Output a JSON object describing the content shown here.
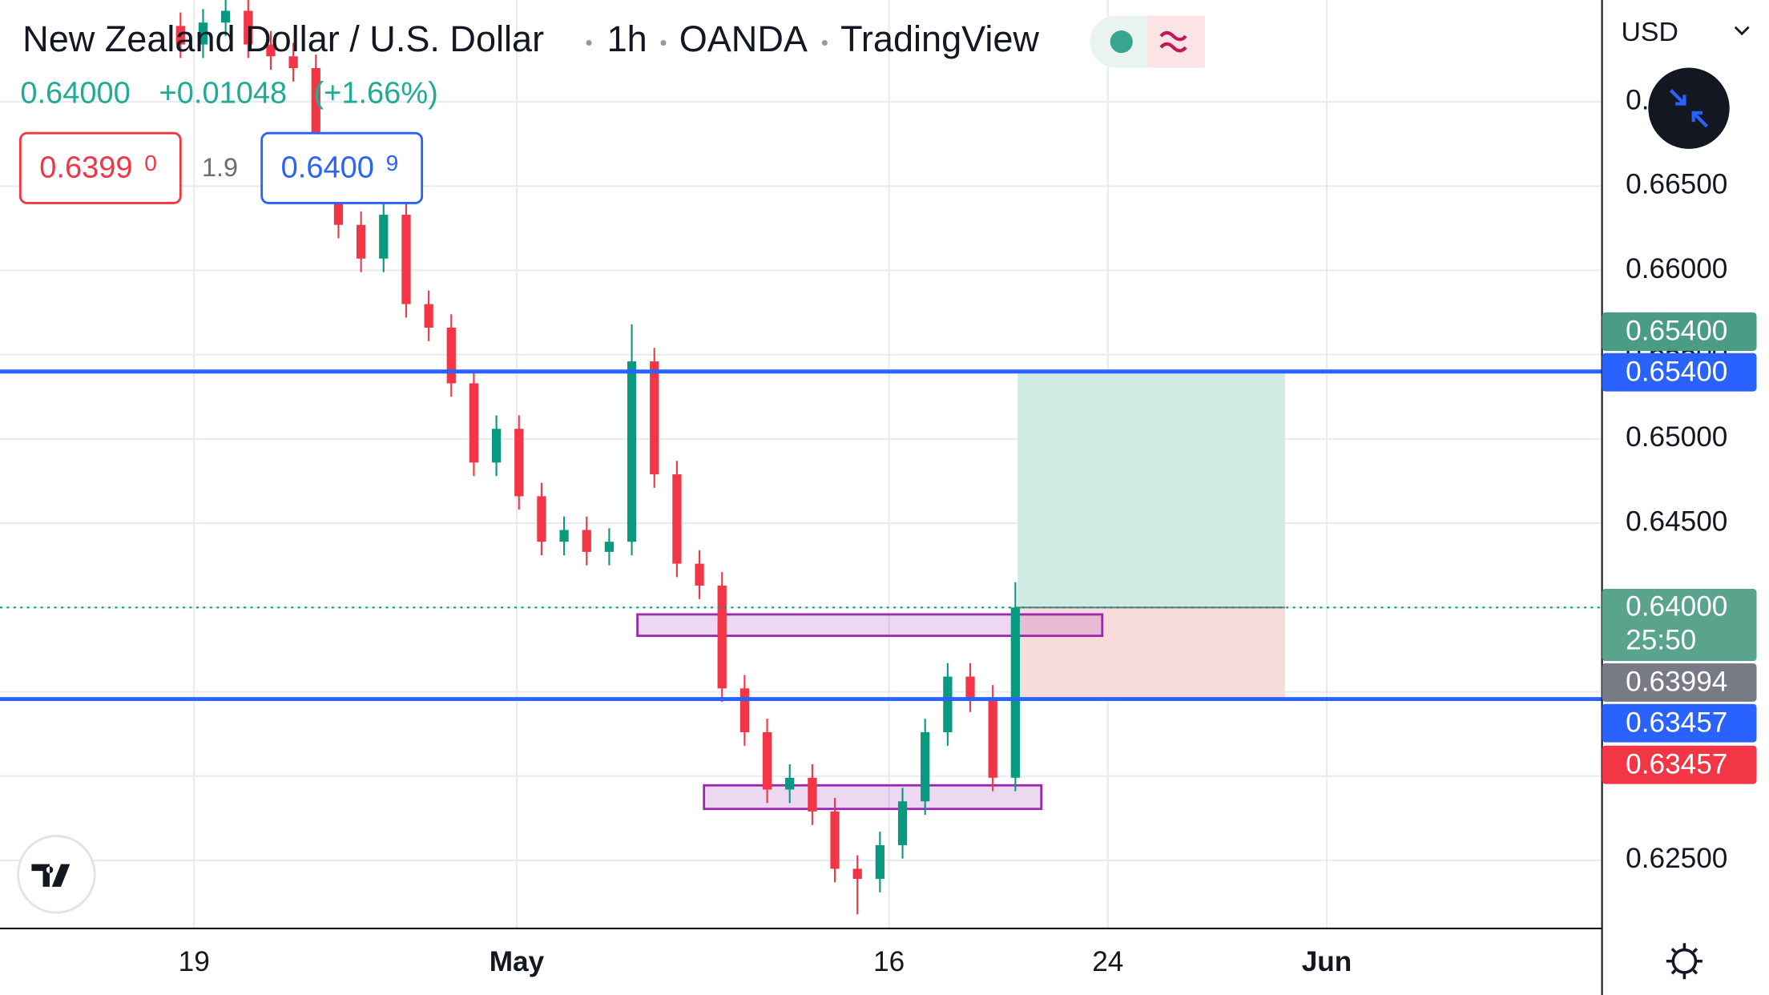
{
  "chart_data": {
    "type": "candlestick",
    "title": "New Zealand Dollar / U.S. Dollar",
    "interval": "1h",
    "source": "OANDA",
    "brand": "TradingView",
    "last_price": "0.64000",
    "change": "+0.01048",
    "change_pct": "(+1.66%)",
    "sell": {
      "price": "0.6399",
      "pip": "0"
    },
    "spread": "1.9",
    "buy": {
      "price": "0.6400",
      "pip": "9"
    },
    "currency": "USD",
    "up_color": "#089981",
    "down_color": "#f23645",
    "x": [
      16,
      18,
      20,
      22,
      24,
      26,
      28,
      30,
      32,
      34,
      36,
      38,
      40,
      42,
      44,
      46,
      48,
      50,
      52,
      54,
      56,
      58,
      60,
      62,
      64,
      66,
      68,
      70,
      72,
      74,
      76,
      78,
      80,
      82,
      84,
      86,
      88,
      90
    ],
    "open": [
      0.6745,
      0.6734,
      0.6747,
      0.6754,
      0.6734,
      0.6727,
      0.672,
      0.666,
      0.6627,
      0.6607,
      0.6633,
      0.658,
      0.6566,
      0.6533,
      0.6486,
      0.6506,
      0.6466,
      0.6439,
      0.6446,
      0.6433,
      0.6439,
      0.6546,
      0.6479,
      0.6426,
      0.6413,
      0.6352,
      0.6326,
      0.6292,
      0.6299,
      0.6279,
      0.6245,
      0.6239,
      0.6259,
      0.6285,
      0.6326,
      0.6359,
      0.6346,
      0.6299
    ],
    "high": [
      0.6753,
      0.6755,
      0.6762,
      0.6762,
      0.6742,
      0.6735,
      0.6728,
      0.6668,
      0.6635,
      0.6641,
      0.6641,
      0.6588,
      0.6574,
      0.6541,
      0.6514,
      0.6514,
      0.6474,
      0.6454,
      0.6454,
      0.6447,
      0.6568,
      0.6554,
      0.6487,
      0.6434,
      0.6421,
      0.636,
      0.6334,
      0.6307,
      0.6307,
      0.6287,
      0.6253,
      0.6267,
      0.6293,
      0.6334,
      0.6367,
      0.6367,
      0.6354,
      0.6415
    ],
    "low": [
      0.6726,
      0.6726,
      0.6739,
      0.6726,
      0.6719,
      0.6712,
      0.6652,
      0.6619,
      0.6599,
      0.6599,
      0.6572,
      0.6558,
      0.6525,
      0.6478,
      0.6478,
      0.6458,
      0.6431,
      0.6431,
      0.6425,
      0.6425,
      0.6431,
      0.6471,
      0.6418,
      0.6405,
      0.6344,
      0.6318,
      0.6284,
      0.6284,
      0.6271,
      0.6237,
      0.6218,
      0.6231,
      0.6251,
      0.6277,
      0.6318,
      0.6338,
      0.6291,
      0.6291
    ],
    "close": [
      0.6734,
      0.6747,
      0.6754,
      0.6734,
      0.6727,
      0.672,
      0.666,
      0.6627,
      0.6607,
      0.6633,
      0.658,
      0.6566,
      0.6533,
      0.6486,
      0.6506,
      0.6466,
      0.6439,
      0.6446,
      0.6433,
      0.6439,
      0.6546,
      0.6479,
      0.6426,
      0.6413,
      0.6352,
      0.6326,
      0.6292,
      0.6299,
      0.6279,
      0.6245,
      0.6239,
      0.6259,
      0.6285,
      0.6326,
      0.6359,
      0.6346,
      0.6299,
      0.64
    ],
    "xlim": [
      0,
      142
    ],
    "xticks": [
      {
        "value": 17.2,
        "label": "19"
      },
      {
        "value": 45.8,
        "label": "May"
      },
      {
        "value": 78.8,
        "label": "16"
      },
      {
        "value": 98.2,
        "label": "24"
      },
      {
        "value": 117.6,
        "label": "Jun"
      }
    ],
    "ylim": [
      0.62096,
      0.67604
    ],
    "yticks": [
      {
        "value": 0.625,
        "label": "0.62500"
      },
      {
        "value": 0.63,
        "label": "0.63000"
      },
      {
        "value": 0.635,
        "label": "0.63500"
      },
      {
        "value": 0.64,
        "label": "0.64000"
      },
      {
        "value": 0.645,
        "label": "0.64500"
      },
      {
        "value": 0.65,
        "label": "0.65000"
      },
      {
        "value": 0.655,
        "label": "0.65500"
      },
      {
        "value": 0.66,
        "label": "0.66000"
      },
      {
        "value": 0.665,
        "label": "0.66500"
      },
      {
        "value": 0.67,
        "label": "0.67000"
      }
    ],
    "grid": true,
    "lines": [
      {
        "value": 0.654,
        "color": "#2962ff"
      },
      {
        "value": 0.63457,
        "color": "#2962ff"
      }
    ],
    "last_line": {
      "value": 0.64,
      "color": "#089981"
    },
    "zones": [
      {
        "x": [
          56.5,
          97.7
        ],
        "y": [
          0.63832,
          0.63959
        ]
      },
      {
        "x": [
          62.4,
          92.3
        ],
        "y": [
          0.62805,
          0.62945
        ]
      }
    ],
    "position": {
      "x": [
        90.2,
        113.9
      ],
      "entry": 0.64,
      "target": 0.654,
      "stop": 0.63457
    },
    "price_tags": [
      {
        "label": "0.65400",
        "color": "#4a9c85"
      },
      {
        "label": "0.65400",
        "color": "#2962ff"
      },
      {
        "label": "0.64000",
        "sub": "25:50",
        "color": "#5aa48e"
      },
      {
        "label": "0.63994",
        "color": "#787b86"
      },
      {
        "label": "0.63457",
        "color": "#2962ff"
      },
      {
        "label": "0.63457",
        "color": "#f23645"
      }
    ]
  }
}
